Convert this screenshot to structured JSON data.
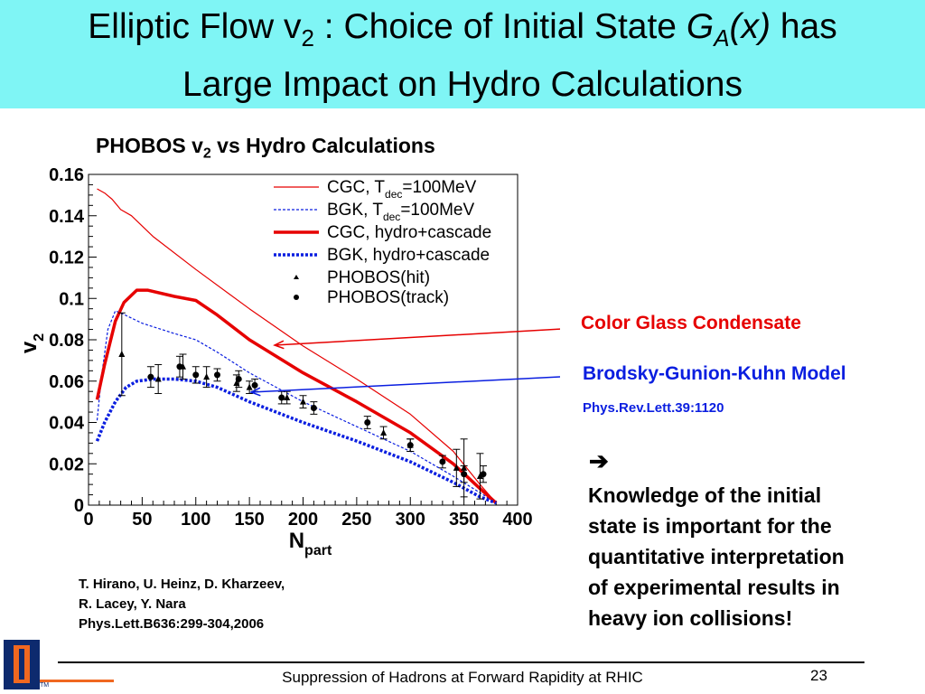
{
  "slide": {
    "title_pre": "Elliptic Flow v",
    "title_sub": "2",
    "title_mid": " : Choice of Initial State ",
    "title_G": "G",
    "title_Gsub": "A",
    "title_x": "(x)",
    "title_post": " has",
    "title_line2": "Large Impact on Hydro Calculations",
    "subtitle_pre": "PHOBOS v",
    "subtitle_sub": "2",
    "subtitle_post": " vs Hydro Calculations",
    "cgc_label": "Color Glass Condensate",
    "bgk_label": "Brodsky-Gunion-Kuhn Model",
    "bgk_reference": "Phys.Rev.Lett.39:1120",
    "arrow_symbol": "➔",
    "conclusion_lines": [
      "Knowledge of the initial",
      "state is important for the",
      "quantitative interpretation",
      "of experimental results in",
      "heavy ion collisions!"
    ],
    "citation_lines": [
      "T. Hirano, U. Heinz, D. Kharzeev,",
      "R. Lacey, Y. Nara",
      "Phys.Lett.B636:299-304,2006"
    ],
    "footer": "Suppression of Hadrons at Forward Rapidity at RHIC",
    "page_number": "23",
    "colors": {
      "title_bg": "#7ff5f5",
      "cgc": "#e60000",
      "bgk": "#0a1ee0",
      "logo_blue": "#0d2a6e",
      "logo_orange": "#f06820"
    }
  },
  "chart_data": {
    "type": "line",
    "xlabel": "N",
    "xlabel_sub": "part",
    "ylabel": "v",
    "ylabel_sub": "2",
    "xlim": [
      0,
      400
    ],
    "ylim": [
      0,
      0.16
    ],
    "xticks": [
      0,
      50,
      100,
      150,
      200,
      250,
      300,
      350,
      400
    ],
    "xtick_labels": [
      "0",
      "50",
      "100",
      "150",
      "200",
      "250",
      "300",
      "350",
      "400"
    ],
    "yticks": [
      0,
      0.02,
      0.04,
      0.06,
      0.08,
      0.1,
      0.12,
      0.14,
      0.16
    ],
    "ytick_labels": [
      "0",
      "0.02",
      "0.04",
      "0.06",
      "0.08",
      "0.1",
      "0.12",
      "0.14",
      "0.16"
    ],
    "legend_position": "top-right",
    "series": [
      {
        "key": "cgc_tdec",
        "name": "CGC, T",
        "name_sub": "dec",
        "name_post": "=100MeV",
        "color": "#e60000",
        "width": 1.2,
        "dash": "",
        "points": [
          [
            8,
            0.153
          ],
          [
            15,
            0.151
          ],
          [
            22,
            0.148
          ],
          [
            30,
            0.143
          ],
          [
            40,
            0.14
          ],
          [
            60,
            0.13
          ],
          [
            100,
            0.114
          ],
          [
            150,
            0.095
          ],
          [
            200,
            0.077
          ],
          [
            250,
            0.061
          ],
          [
            300,
            0.044
          ],
          [
            340,
            0.026
          ],
          [
            365,
            0.01
          ],
          [
            380,
            0.001
          ]
        ]
      },
      {
        "key": "bgk_tdec",
        "name": "BGK, T",
        "name_sub": "dec",
        "name_post": "=100MeV",
        "color": "#0a1ee0",
        "width": 1.2,
        "dash": "3,2",
        "points": [
          [
            8,
            0.041
          ],
          [
            12,
            0.062
          ],
          [
            18,
            0.085
          ],
          [
            25,
            0.094
          ],
          [
            30,
            0.093
          ],
          [
            50,
            0.088
          ],
          [
            80,
            0.083
          ],
          [
            100,
            0.08
          ],
          [
            120,
            0.074
          ],
          [
            150,
            0.064
          ],
          [
            200,
            0.05
          ],
          [
            250,
            0.038
          ],
          [
            300,
            0.026
          ],
          [
            340,
            0.014
          ],
          [
            365,
            0.006
          ],
          [
            380,
            0.001
          ]
        ]
      },
      {
        "key": "cgc_hydro",
        "name": "CGC, hydro+cascade",
        "name_sub": "",
        "name_post": "",
        "color": "#e60000",
        "width": 3.5,
        "dash": "",
        "points": [
          [
            8,
            0.051
          ],
          [
            15,
            0.068
          ],
          [
            25,
            0.089
          ],
          [
            33,
            0.098
          ],
          [
            45,
            0.104
          ],
          [
            55,
            0.104
          ],
          [
            80,
            0.101
          ],
          [
            100,
            0.099
          ],
          [
            120,
            0.092
          ],
          [
            150,
            0.08
          ],
          [
            200,
            0.064
          ],
          [
            250,
            0.05
          ],
          [
            300,
            0.035
          ],
          [
            340,
            0.02
          ],
          [
            365,
            0.008
          ],
          [
            380,
            0.001
          ]
        ]
      },
      {
        "key": "bgk_hydro",
        "name": "BGK, hydro+cascade",
        "name_sub": "",
        "name_post": "",
        "color": "#0a1ee0",
        "width": 3.5,
        "dash": "3,2",
        "points": [
          [
            8,
            0.031
          ],
          [
            15,
            0.04
          ],
          [
            25,
            0.05
          ],
          [
            35,
            0.057
          ],
          [
            45,
            0.06
          ],
          [
            60,
            0.061
          ],
          [
            80,
            0.061
          ],
          [
            100,
            0.06
          ],
          [
            120,
            0.057
          ],
          [
            150,
            0.05
          ],
          [
            200,
            0.04
          ],
          [
            250,
            0.031
          ],
          [
            300,
            0.021
          ],
          [
            340,
            0.011
          ],
          [
            365,
            0.004
          ],
          [
            380,
            0.001
          ]
        ]
      }
    ],
    "markers": [
      {
        "name": "PHOBOS(hit)",
        "symbol": "triangle",
        "points": [
          [
            31,
            0.073,
            0.02
          ],
          [
            65,
            0.061,
            0.007
          ],
          [
            88,
            0.067,
            0.006
          ],
          [
            110,
            0.062,
            0.005
          ],
          [
            138,
            0.059,
            0.004
          ],
          [
            150,
            0.057,
            0.003
          ],
          [
            185,
            0.052,
            0.003
          ],
          [
            200,
            0.05,
            0.003
          ],
          [
            275,
            0.035,
            0.003
          ],
          [
            300,
            0.029,
            0.003
          ],
          [
            343,
            0.018,
            0.009
          ],
          [
            350,
            0.018,
            0.014
          ],
          [
            365,
            0.014,
            0.011
          ]
        ]
      },
      {
        "name": "PHOBOS(track)",
        "symbol": "circle",
        "points": [
          [
            58,
            0.062,
            0.005
          ],
          [
            85,
            0.067,
            0.005
          ],
          [
            100,
            0.063,
            0.004
          ],
          [
            120,
            0.063,
            0.003
          ],
          [
            140,
            0.061,
            0.004
          ],
          [
            155,
            0.058,
            0.003
          ],
          [
            180,
            0.052,
            0.003
          ],
          [
            210,
            0.047,
            0.003
          ],
          [
            260,
            0.04,
            0.003
          ],
          [
            300,
            0.029,
            0.003
          ],
          [
            330,
            0.021,
            0.003
          ],
          [
            350,
            0.015,
            0.004
          ],
          [
            368,
            0.015,
            0.004
          ]
        ]
      }
    ]
  }
}
